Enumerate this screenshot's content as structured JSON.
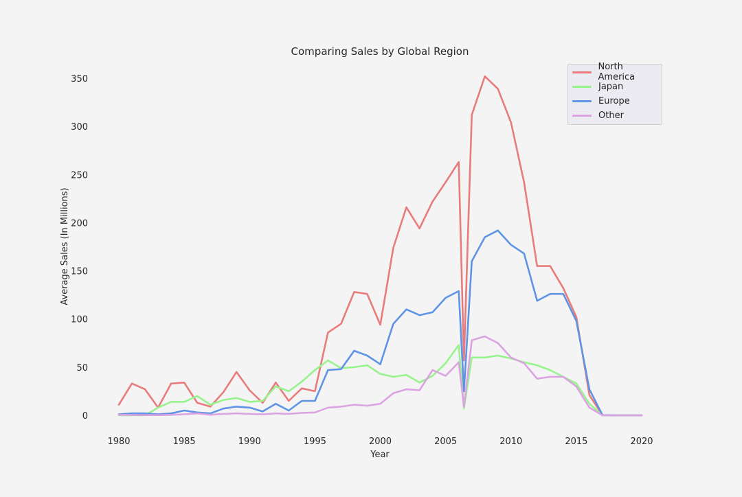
{
  "chart_data": {
    "type": "line",
    "title": "Comparing Sales by Global Region",
    "xlabel": "Year",
    "ylabel": "Average Sales (In Millions)",
    "xlim": [
      1980,
      2020
    ],
    "ylim": [
      0,
      360
    ],
    "xticks": [
      1980,
      1985,
      1990,
      1995,
      2000,
      2005,
      2010,
      2015,
      2020
    ],
    "yticks": [
      0,
      50,
      100,
      150,
      200,
      250,
      300,
      350
    ],
    "grid": false,
    "legend_position": "top-right",
    "x": [
      1980,
      1981,
      1982,
      1983,
      1984,
      1985,
      1986,
      1987,
      1988,
      1989,
      1990,
      1991,
      1992,
      1993,
      1994,
      1995,
      1996,
      1997,
      1998,
      1999,
      2000,
      2001,
      2002,
      2003,
      2004,
      2005,
      2006,
      2006.4,
      2007,
      2008,
      2009,
      2010,
      2011,
      2012,
      2013,
      2014,
      2015,
      2016,
      2017,
      2018,
      2019,
      2020
    ],
    "series": [
      {
        "name": "North America",
        "color": "#e87b7b",
        "values": [
          11,
          33,
          27,
          8,
          33,
          34,
          13,
          9,
          24,
          45,
          26,
          13,
          34,
          15,
          28,
          25,
          86,
          95,
          128,
          126,
          94,
          174,
          216,
          194,
          222,
          242,
          263,
          57,
          312,
          352,
          339,
          304,
          242,
          155,
          155,
          132,
          102,
          21,
          0.1,
          0,
          0,
          0
        ]
      },
      {
        "name": "Japan",
        "color": "#98f38d",
        "values": [
          0,
          0,
          0,
          8,
          14,
          14,
          20,
          11,
          16,
          18,
          14,
          15,
          30,
          25,
          35,
          47,
          57,
          49,
          50,
          52,
          43,
          40,
          42,
          34,
          41,
          54,
          73,
          7,
          60,
          60,
          62,
          59,
          55,
          52,
          47,
          40,
          33,
          12,
          0,
          0,
          0,
          0
        ]
      },
      {
        "name": "Europe",
        "color": "#5f93e5",
        "values": [
          1,
          2,
          2,
          1,
          2,
          5,
          3,
          2,
          7,
          9,
          8,
          4,
          12,
          5,
          15,
          15,
          47,
          48,
          67,
          62,
          53,
          95,
          110,
          104,
          107,
          122,
          129,
          25,
          160,
          185,
          192,
          177,
          168,
          119,
          126,
          126,
          98,
          27,
          0.2,
          0,
          0,
          0
        ]
      },
      {
        "name": "Other",
        "color": "#dba3e2",
        "values": [
          0.5,
          0.3,
          0.2,
          0.2,
          0.5,
          1,
          2,
          0.5,
          1.5,
          2,
          1.5,
          1,
          2,
          1.5,
          2.5,
          3,
          8,
          9,
          11,
          10,
          12,
          23,
          27,
          26,
          47,
          41,
          55,
          9,
          78,
          82,
          75,
          60,
          54,
          38,
          40,
          40,
          30,
          8,
          0,
          0,
          0,
          0
        ]
      }
    ]
  }
}
